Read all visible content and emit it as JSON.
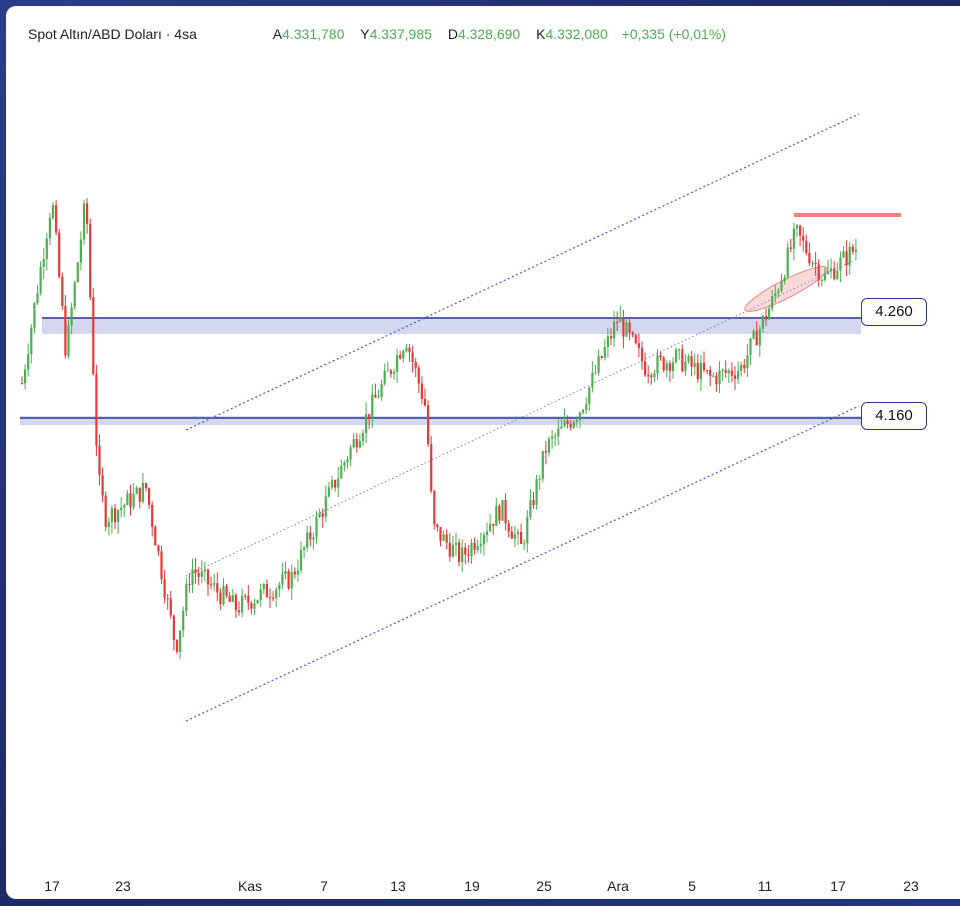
{
  "header": {
    "symbol": "Spot Altın/ABD Doları · 4sa",
    "open_label": "A",
    "open": "4.331,780",
    "high_label": "Y",
    "high": "4.337,985",
    "low_label": "D",
    "low": "4.328,690",
    "close_label": "K",
    "close": "4.332,080",
    "change": "+0,335 (+0,01%)"
  },
  "colors": {
    "up": "#4caf50",
    "down": "#e53935",
    "zone": "#c5cbe9",
    "zone_line": "#2b3990",
    "channel": "#5b5fd6",
    "highlight": "#f08080"
  },
  "chart_data": {
    "type": "candlestick",
    "x_tick_labels": [
      "17",
      "23",
      "Kas",
      "7",
      "13",
      "19",
      "25",
      "Ara",
      "5",
      "11",
      "17",
      "23"
    ],
    "y_axis_labels": [
      "4.260",
      "4.160"
    ],
    "support_resistance_zones": [
      {
        "label": "4.260",
        "value": 4260
      },
      {
        "label": "4.160",
        "value": 4160
      }
    ],
    "channel": {
      "type": "ascending",
      "lines": [
        "upper",
        "middle",
        "lower"
      ]
    },
    "price_path_approx": [
      {
        "x": "17",
        "y": 4195
      },
      {
        "x": "18",
        "y": 4380
      },
      {
        "x": "19",
        "y": 4225
      },
      {
        "x": "20",
        "y": 4380
      },
      {
        "x": "21",
        "y": 4100
      },
      {
        "x": "23",
        "y": 4060
      },
      {
        "x": "26",
        "y": 4090
      },
      {
        "x": "28",
        "y": 3930
      },
      {
        "x": "Kas",
        "y": 4010
      },
      {
        "x": "5",
        "y": 3970
      },
      {
        "x": "7",
        "y": 4000
      },
      {
        "x": "10",
        "y": 4120
      },
      {
        "x": "13",
        "y": 4240
      },
      {
        "x": "15",
        "y": 4170
      },
      {
        "x": "16",
        "y": 4050
      },
      {
        "x": "19",
        "y": 4020
      },
      {
        "x": "21",
        "y": 4070
      },
      {
        "x": "23",
        "y": 4030
      },
      {
        "x": "25",
        "y": 4130
      },
      {
        "x": "28",
        "y": 4170
      },
      {
        "x": "Ara",
        "y": 4260
      },
      {
        "x": "3",
        "y": 4210
      },
      {
        "x": "5",
        "y": 4220
      },
      {
        "x": "8",
        "y": 4200
      },
      {
        "x": "10",
        "y": 4210
      },
      {
        "x": "11",
        "y": 4280
      },
      {
        "x": "12",
        "y": 4345
      },
      {
        "x": "15",
        "y": 4300
      },
      {
        "x": "17",
        "y": 4332
      }
    ]
  }
}
